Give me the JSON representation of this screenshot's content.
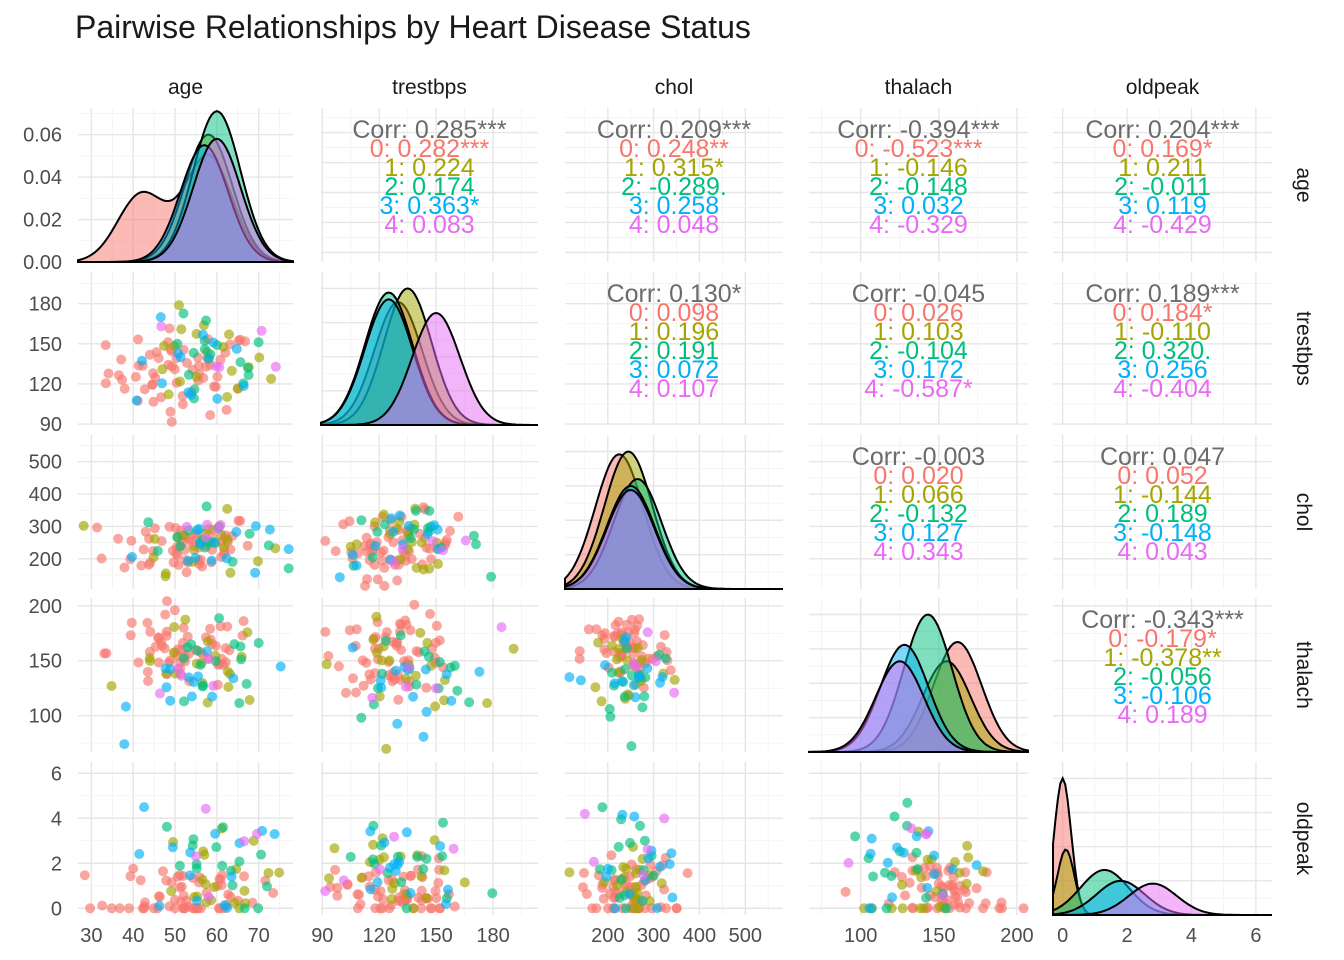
{
  "chart_data": {
    "type": "scatter",
    "title": "Pairwise Relationships by Heart Disease Status",
    "variables": [
      "age",
      "trestbps",
      "chol",
      "thalach",
      "oldpeak"
    ],
    "groups": [
      "0",
      "1",
      "2",
      "3",
      "4"
    ],
    "group_colors": {
      "0": "#F8766D",
      "1": "#A3A500",
      "2": "#00BF7D",
      "3": "#00B0F6",
      "4": "#E76BF3"
    },
    "total_color": "#6b6b6b",
    "grid": true,
    "legend": "none",
    "axis_ranges": {
      "age": [
        26.8,
        78.2
      ],
      "trestbps": [
        89.3,
        203.7
      ],
      "chol": [
        106.7,
        582.3
      ],
      "thalach": [
        66.9,
        207.1
      ],
      "oldpeak": [
        -0.3,
        6.5
      ]
    },
    "density_y_axis": {
      "ticks": [
        "0.00",
        "0.02",
        "0.04",
        "0.06"
      ],
      "range": [
        0,
        0.0725
      ]
    },
    "axis_ticks": {
      "age": [
        "30",
        "40",
        "50",
        "60",
        "70"
      ],
      "trestbps": [
        "90",
        "120",
        "150",
        "180"
      ],
      "chol": [
        "200",
        "300",
        "400",
        "500"
      ],
      "thalach": [
        "100",
        "150",
        "200"
      ],
      "oldpeak": [
        "0",
        "2",
        "4",
        "6"
      ]
    },
    "correlations": [
      {
        "row": "age",
        "col": "trestbps",
        "total": "Corr: 0.285***",
        "groups": [
          "0: 0.282***",
          "1: 0.224",
          "2: 0.174",
          "3: 0.363*",
          "4: 0.083"
        ]
      },
      {
        "row": "age",
        "col": "chol",
        "total": "Corr: 0.209***",
        "groups": [
          "0: 0.248**",
          "1: 0.315*",
          "2: -0.289.",
          "3: 0.258",
          "4: 0.048"
        ]
      },
      {
        "row": "age",
        "col": "thalach",
        "total": "Corr: -0.394***",
        "groups": [
          "0: -0.523***",
          "1: -0.146",
          "2: -0.148",
          "3: 0.032",
          "4: -0.329"
        ]
      },
      {
        "row": "age",
        "col": "oldpeak",
        "total": "Corr: 0.204***",
        "groups": [
          "0: 0.169*",
          "1: 0.211",
          "2: -0.011",
          "3: 0.119",
          "4: -0.429"
        ]
      },
      {
        "row": "trestbps",
        "col": "chol",
        "total": "Corr: 0.130*",
        "groups": [
          "0: 0.098",
          "1: 0.196",
          "2: 0.191",
          "3: 0.072",
          "4: 0.107"
        ]
      },
      {
        "row": "trestbps",
        "col": "thalach",
        "total": "Corr: -0.045",
        "groups": [
          "0: 0.026",
          "1: 0.103",
          "2: -0.104",
          "3: 0.172",
          "4: -0.587*"
        ]
      },
      {
        "row": "trestbps",
        "col": "oldpeak",
        "total": "Corr: 0.189***",
        "groups": [
          "0: 0.184*",
          "1: -0.110",
          "2: 0.320.",
          "3: 0.256",
          "4: -0.404"
        ]
      },
      {
        "row": "chol",
        "col": "thalach",
        "total": "Corr: -0.003",
        "groups": [
          "0: 0.020",
          "1: 0.066",
          "2: -0.132",
          "3: 0.127",
          "4: 0.343"
        ]
      },
      {
        "row": "chol",
        "col": "oldpeak",
        "total": "Corr: 0.047",
        "groups": [
          "0: 0.052",
          "1: -0.144",
          "2: 0.189",
          "3: -0.148",
          "4: 0.043"
        ]
      },
      {
        "row": "thalach",
        "col": "oldpeak",
        "total": "Corr: -0.343***",
        "groups": [
          "0: -0.179*",
          "1: -0.378**",
          "2: -0.056",
          "3: -0.106",
          "4: 0.189"
        ]
      }
    ],
    "density_peaks": {
      "age": {
        "0": [
          [
            42,
            0.032
          ],
          [
            58,
            0.05
          ]
        ],
        "1": [
          [
            58,
            0.06
          ]
        ],
        "2": [
          [
            60,
            0.071
          ]
        ],
        "3": [
          [
            57,
            0.055
          ]
        ],
        "4": [
          [
            60,
            0.058
          ]
        ]
      },
      "trestbps": {
        "0": [
          [
            130,
            0.9
          ]
        ],
        "1": [
          [
            135,
            1.0
          ]
        ],
        "2": [
          [
            125,
            0.97
          ]
        ],
        "3": [
          [
            125,
            0.92
          ]
        ],
        "4": [
          [
            150,
            0.82
          ]
        ]
      },
      "chol": {
        "0": [
          [
            225,
            0.98
          ]
        ],
        "1": [
          [
            245,
            1.0
          ]
        ],
        "2": [
          [
            265,
            0.8
          ]
        ],
        "3": [
          [
            250,
            0.75
          ]
        ],
        "4": [
          [
            250,
            0.72
          ]
        ]
      },
      "thalach": {
        "0": [
          [
            162,
            0.8
          ]
        ],
        "1": [
          [
            155,
            0.66
          ]
        ],
        "2": [
          [
            143,
            1.0
          ]
        ],
        "3": [
          [
            128,
            0.78
          ]
        ],
        "4": [
          [
            125,
            0.66
          ]
        ]
      },
      "oldpeak": {
        "0": [
          [
            0,
            1.0
          ]
        ],
        "1": [
          [
            0.1,
            0.48
          ]
        ],
        "2": [
          [
            1.3,
            0.33
          ]
        ],
        "3": [
          [
            1.8,
            0.25
          ]
        ],
        "4": [
          [
            2.8,
            0.23
          ]
        ]
      }
    }
  }
}
